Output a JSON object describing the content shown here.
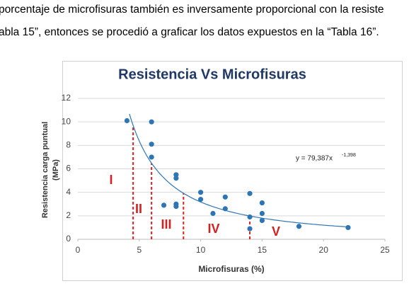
{
  "document_text": [
    "porcentaje de microfisuras también  es inversamente proporcional con la resiste",
    "abla 15”, entonces se procedió a graficar los datos expuestos en la “Tabla 16”."
  ],
  "chart_data": {
    "type": "scatter",
    "title": "Resistencia Vs Microfisuras",
    "x_label": "Microfisuras (%)",
    "y_label": [
      "Resistencia carga puntual",
      "(MPa)"
    ],
    "x": [
      4,
      6,
      6,
      6,
      7,
      8,
      8,
      8,
      8,
      10,
      10,
      11,
      12,
      12,
      14,
      14,
      14,
      15,
      15,
      15,
      18,
      22
    ],
    "values": [
      10.1,
      10,
      8.1,
      7,
      2.9,
      5.5,
      5.2,
      3,
      2.8,
      4,
      3.4,
      2.2,
      3.6,
      2.6,
      3.9,
      1.9,
      0.9,
      3.1,
      2.2,
      1.6,
      1.1,
      1
    ],
    "color": "#2e75b6",
    "xlim": [
      0,
      25
    ],
    "xticks": [
      0,
      5,
      10,
      15,
      20,
      25
    ],
    "ylim": [
      0,
      12
    ],
    "yticks": [
      0,
      2,
      4,
      6,
      8,
      10,
      12
    ],
    "grid": true,
    "trendline": {
      "label": "y = 79,387x",
      "exponent_label": "-1,398",
      "a": 79.387,
      "b": -1.398,
      "xlim": [
        4.2,
        22
      ],
      "color": "#2e75b6"
    },
    "zone_boundaries": {
      "x": [
        4.5,
        6,
        8.6,
        14
      ],
      "color": "#e02020"
    },
    "zone_labels": [
      "I",
      "II",
      "III",
      "IV",
      "V"
    ]
  }
}
